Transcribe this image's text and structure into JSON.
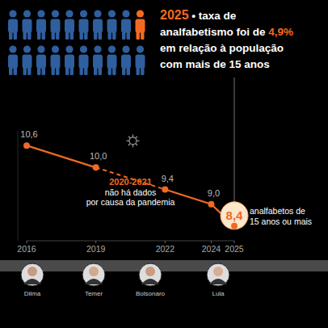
{
  "headline": {
    "lines": [
      [
        {
          "text": "2025",
          "highlight": true
        },
        {
          "text": " • taxa de",
          "highlight": false
        }
      ],
      [
        {
          "text": "analfabetismo foi de ",
          "highlight": false
        },
        {
          "text": "4,9%",
          "highlight": true
        }
      ],
      [
        {
          "text": "em relação à população",
          "highlight": false
        }
      ],
      [
        {
          "text": "com mais de 15 anos",
          "highlight": false
        }
      ]
    ],
    "color": "#f26a21"
  },
  "pictogram": {
    "total": 20,
    "highlighted": 1,
    "color": "#2f5f9e",
    "highlight_color": "#f26a21"
  },
  "chart_data": {
    "type": "line",
    "x": [
      2016,
      2019,
      2020,
      2021,
      2022,
      2024,
      2025
    ],
    "series": [
      {
        "color": "#ee6a22",
        "marker": "circle",
        "line_style": "solid",
        "values": [
          10.6,
          10.0,
          null,
          null,
          9.4,
          9.0,
          8.4
        ],
        "value_labels": [
          "10,6",
          "10,0",
          null,
          null,
          "9,4",
          "9,0",
          "8,4"
        ]
      }
    ],
    "xlim": [
      2016,
      2025
    ],
    "xticks": [
      2016,
      2019,
      2022,
      2024,
      2025
    ],
    "ylim": [
      8,
      11
    ],
    "tick_labels": "x",
    "grid": false,
    "data_labels": true,
    "annotations": [
      {
        "title": "2020-2021",
        "text": [
          "não há dados",
          "por causa da pandemia"
        ]
      },
      {
        "text": [
          "analfabetos de",
          "15 anos ou mais"
        ]
      }
    ]
  },
  "presidents": [
    "Dilma",
    "Temer",
    "Bolsonaro",
    "Lula"
  ]
}
